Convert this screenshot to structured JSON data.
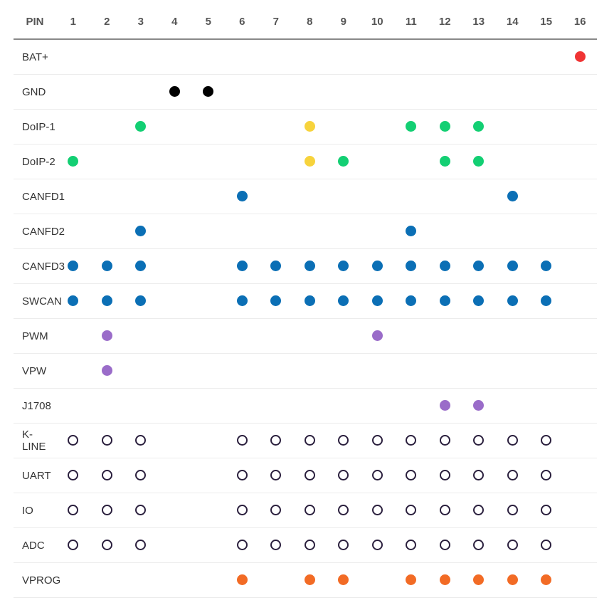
{
  "header_label": "PIN",
  "pins": [
    "1",
    "2",
    "3",
    "4",
    "5",
    "6",
    "7",
    "8",
    "9",
    "10",
    "11",
    "12",
    "13",
    "14",
    "15",
    "16"
  ],
  "colors": {
    "red": "#f03434",
    "black": "#000000",
    "green": "#13cf73",
    "yellow": "#f7d33c",
    "blue": "#0b6fb5",
    "purple": "#9a6cc9",
    "orange": "#f26b25",
    "ring": "#2a1f3d"
  },
  "rows": [
    {
      "label": "BAT+",
      "cells": {
        "16": "red"
      }
    },
    {
      "label": "GND",
      "cells": {
        "4": "black",
        "5": "black"
      }
    },
    {
      "label": "DoIP-1",
      "cells": {
        "3": "green",
        "8": "yellow",
        "11": "green",
        "12": "green",
        "13": "green"
      }
    },
    {
      "label": "DoIP-2",
      "cells": {
        "1": "green",
        "8": "yellow",
        "9": "green",
        "12": "green",
        "13": "green"
      }
    },
    {
      "label": "CANFD1",
      "cells": {
        "6": "blue",
        "14": "blue"
      }
    },
    {
      "label": "CANFD2",
      "cells": {
        "3": "blue",
        "11": "blue"
      }
    },
    {
      "label": "CANFD3",
      "cells": {
        "1": "blue",
        "2": "blue",
        "3": "blue",
        "6": "blue",
        "7": "blue",
        "8": "blue",
        "9": "blue",
        "10": "blue",
        "11": "blue",
        "12": "blue",
        "13": "blue",
        "14": "blue",
        "15": "blue"
      }
    },
    {
      "label": "SWCAN",
      "cells": {
        "1": "blue",
        "2": "blue",
        "3": "blue",
        "6": "blue",
        "7": "blue",
        "8": "blue",
        "9": "blue",
        "10": "blue",
        "11": "blue",
        "12": "blue",
        "13": "blue",
        "14": "blue",
        "15": "blue"
      }
    },
    {
      "label": "PWM",
      "cells": {
        "2": "purple",
        "10": "purple"
      }
    },
    {
      "label": "VPW",
      "cells": {
        "2": "purple"
      }
    },
    {
      "label": "J1708",
      "cells": {
        "12": "purple",
        "13": "purple"
      }
    },
    {
      "label": "K-LINE",
      "cells": {
        "1": "ring",
        "2": "ring",
        "3": "ring",
        "6": "ring",
        "7": "ring",
        "8": "ring",
        "9": "ring",
        "10": "ring",
        "11": "ring",
        "12": "ring",
        "13": "ring",
        "14": "ring",
        "15": "ring"
      }
    },
    {
      "label": "UART",
      "cells": {
        "1": "ring",
        "2": "ring",
        "3": "ring",
        "6": "ring",
        "7": "ring",
        "8": "ring",
        "9": "ring",
        "10": "ring",
        "11": "ring",
        "12": "ring",
        "13": "ring",
        "14": "ring",
        "15": "ring"
      }
    },
    {
      "label": "IO",
      "cells": {
        "1": "ring",
        "2": "ring",
        "3": "ring",
        "6": "ring",
        "7": "ring",
        "8": "ring",
        "9": "ring",
        "10": "ring",
        "11": "ring",
        "12": "ring",
        "13": "ring",
        "14": "ring",
        "15": "ring"
      }
    },
    {
      "label": "ADC",
      "cells": {
        "1": "ring",
        "2": "ring",
        "3": "ring",
        "6": "ring",
        "7": "ring",
        "8": "ring",
        "9": "ring",
        "10": "ring",
        "11": "ring",
        "12": "ring",
        "13": "ring",
        "14": "ring",
        "15": "ring"
      }
    },
    {
      "label": "VPROG",
      "cells": {
        "6": "orange",
        "8": "orange",
        "9": "orange",
        "11": "orange",
        "12": "orange",
        "13": "orange",
        "14": "orange",
        "15": "orange"
      }
    }
  ]
}
